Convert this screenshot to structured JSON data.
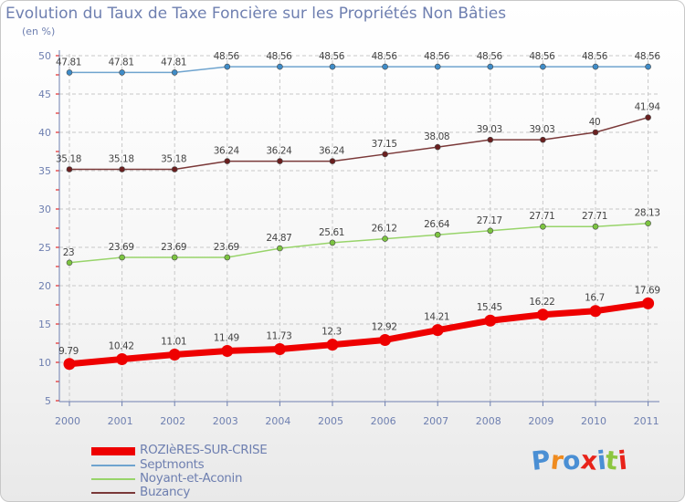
{
  "title": "Evolution du Taux de Taxe Foncière sur les Propriétés Non Bâties",
  "subtitle": "(en %)",
  "logo_text": "Proxiti",
  "colors": {
    "text": "#6e7fb0",
    "grid": "#c8c8c8",
    "axis": "#6e7fb0",
    "tick_red": "#e00000",
    "label": "#444444",
    "logo": [
      "#4a8fd4",
      "#ef8b1f",
      "#4a8fd4",
      "#e8231a",
      "#4a8fd4",
      "#8cc63f",
      "#e8231a"
    ]
  },
  "chart_data": {
    "type": "line",
    "title": "Evolution du Taux de Taxe Foncière sur les Propriétés Non Bâties",
    "ylabel": "(en %)",
    "xlabel": "",
    "ylim": [
      5,
      50
    ],
    "yticks": [
      "5",
      "10",
      "15",
      "20",
      "25",
      "30",
      "35",
      "40",
      "45",
      "50"
    ],
    "categories": [
      "2000",
      "2001",
      "2002",
      "2003",
      "2004",
      "2005",
      "2006",
      "2007",
      "2008",
      "2009",
      "2010",
      "2011"
    ],
    "grid": true,
    "legend_position": "bottom-left",
    "series": [
      {
        "name": "ROZIèRES-SUR-CRISE",
        "color": "#ee0000",
        "marker": "#ee0000",
        "values": [
          9.79,
          10.42,
          11.01,
          11.49,
          11.73,
          12.3,
          12.92,
          14.21,
          15.45,
          16.22,
          16.7,
          17.69
        ],
        "labels": [
          "9.79",
          "10.42",
          "11.01",
          "11.49",
          "11.73",
          "12.3",
          "12.92",
          "14.21",
          "15.45",
          "16.22",
          "16.7",
          "17.69"
        ],
        "thick": true
      },
      {
        "name": "Septmonts",
        "color": "#6fa4cf",
        "marker": "#3f8cc8",
        "values": [
          47.81,
          47.81,
          47.81,
          48.56,
          48.56,
          48.56,
          48.56,
          48.56,
          48.56,
          48.56,
          48.56,
          48.56
        ],
        "labels": [
          "47.81",
          "47.81",
          "47.81",
          "48.56",
          "48.56",
          "48.56",
          "48.56",
          "48.56",
          "48.56",
          "48.56",
          "48.56",
          "48.56"
        ],
        "thick": false
      },
      {
        "name": "Noyant-et-Aconin",
        "color": "#98d46a",
        "marker": "#7cc440",
        "values": [
          23,
          23.69,
          23.69,
          23.69,
          24.87,
          25.61,
          26.12,
          26.64,
          27.17,
          27.71,
          27.71,
          28.13
        ],
        "labels": [
          "23",
          "23.69",
          "23.69",
          "23.69",
          "24.87",
          "25.61",
          "26.12",
          "26.64",
          "27.17",
          "27.71",
          "27.71",
          "28.13"
        ],
        "thick": false
      },
      {
        "name": "Buzancy",
        "color": "#7a3838",
        "marker": "#6a1f1f",
        "values": [
          35.18,
          35.18,
          35.18,
          36.24,
          36.24,
          36.24,
          37.15,
          38.08,
          39.03,
          39.03,
          40,
          41.94
        ],
        "labels": [
          "35.18",
          "35.18",
          "35.18",
          "36.24",
          "36.24",
          "36.24",
          "37.15",
          "38.08",
          "39.03",
          "39.03",
          "40",
          "41.94"
        ],
        "thick": false
      }
    ]
  }
}
